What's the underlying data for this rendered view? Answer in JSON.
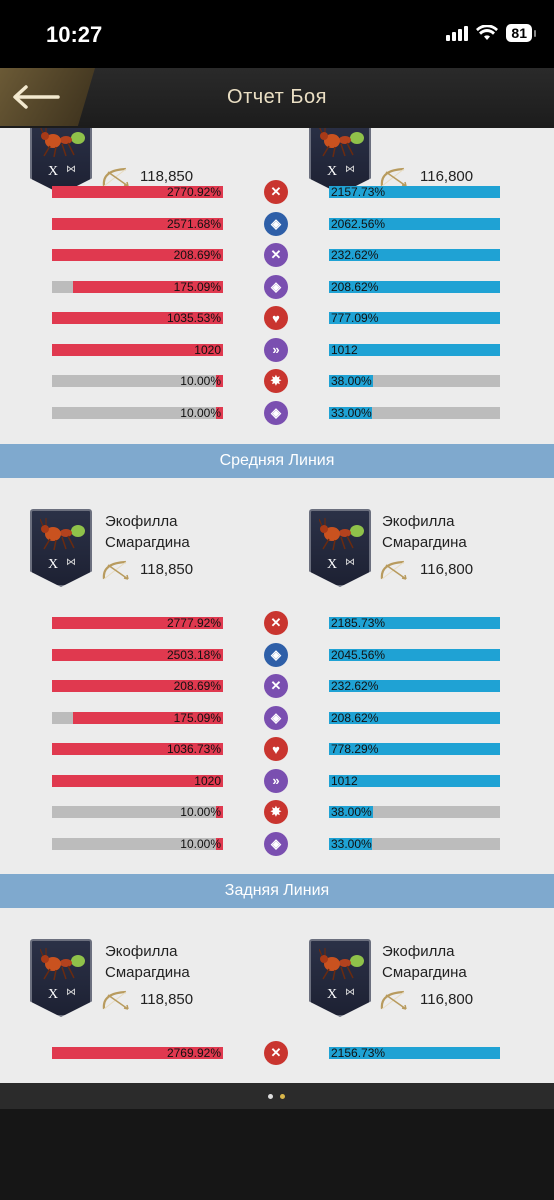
{
  "status_bar": {
    "time": "10:27",
    "battery": "81"
  },
  "header": {
    "title": "Отчет Боя"
  },
  "sections": [
    {
      "label": "",
      "left": {
        "name": "",
        "power": "118,850"
      },
      "right": {
        "name": "",
        "power": "116,800"
      },
      "rows": [
        {
          "stat": "attack",
          "left": "2770.92%",
          "left_fill": 1.0,
          "right": "2157.73%",
          "right_fill": 1.0
        },
        {
          "stat": "defense",
          "left": "2571.68%",
          "left_fill": 1.0,
          "right": "2062.56%",
          "right_fill": 1.0
        },
        {
          "stat": "attack-purple",
          "left": "208.69%",
          "left_fill": 1.0,
          "right": "232.62%",
          "right_fill": 1.0
        },
        {
          "stat": "defense-purple",
          "left": "175.09%",
          "left_fill": 0.88,
          "right": "208.62%",
          "right_fill": 1.0
        },
        {
          "stat": "health",
          "left": "1035.53%",
          "left_fill": 1.0,
          "right": "777.09%",
          "right_fill": 1.0
        },
        {
          "stat": "speed",
          "left": "1020",
          "left_fill": 1.0,
          "right": "1012",
          "right_fill": 1.0
        },
        {
          "stat": "crit",
          "left": "10.00%",
          "left_fill": 0.04,
          "right": "38.00%",
          "right_fill": 0.26
        },
        {
          "stat": "crit-defense",
          "left": "10.00%",
          "left_fill": 0.04,
          "right": "33.00%",
          "right_fill": 0.25
        }
      ]
    },
    {
      "label": "Средняя Линия",
      "left": {
        "name_line1": "Экофилла",
        "name_line2": "Смарагдина",
        "power": "118,850"
      },
      "right": {
        "name_line1": "Экофилла",
        "name_line2": "Смарагдина",
        "power": "116,800"
      },
      "rows": [
        {
          "stat": "attack",
          "left": "2777.92%",
          "left_fill": 1.0,
          "right": "2185.73%",
          "right_fill": 1.0
        },
        {
          "stat": "defense",
          "left": "2503.18%",
          "left_fill": 1.0,
          "right": "2045.56%",
          "right_fill": 1.0
        },
        {
          "stat": "attack-purple",
          "left": "208.69%",
          "left_fill": 1.0,
          "right": "232.62%",
          "right_fill": 1.0
        },
        {
          "stat": "defense-purple",
          "left": "175.09%",
          "left_fill": 0.88,
          "right": "208.62%",
          "right_fill": 1.0
        },
        {
          "stat": "health",
          "left": "1036.73%",
          "left_fill": 1.0,
          "right": "778.29%",
          "right_fill": 1.0
        },
        {
          "stat": "speed",
          "left": "1020",
          "left_fill": 1.0,
          "right": "1012",
          "right_fill": 1.0
        },
        {
          "stat": "crit",
          "left": "10.00%",
          "left_fill": 0.04,
          "right": "38.00%",
          "right_fill": 0.26
        },
        {
          "stat": "crit-defense",
          "left": "10.00%",
          "left_fill": 0.04,
          "right": "33.00%",
          "right_fill": 0.25
        }
      ]
    },
    {
      "label": "Задняя Линия",
      "left": {
        "name_line1": "Экофилла",
        "name_line2": "Смарагдина",
        "power": "118,850"
      },
      "right": {
        "name_line1": "Экофилла",
        "name_line2": "Смарагдина",
        "power": "116,800"
      },
      "rows": [
        {
          "stat": "attack",
          "left": "2769.92%",
          "left_fill": 1.0,
          "right": "2156.73%",
          "right_fill": 1.0
        }
      ]
    }
  ],
  "rank": "X",
  "colors": {
    "red": "#e0394f",
    "blue": "#1fa2d4",
    "gray": "#bcbcbc",
    "band": "#7fa9ce",
    "icon_red": "#c9352f",
    "icon_blue": "#2e5fa8",
    "icon_purple": "#7a4fb0"
  },
  "icons": {
    "attack": "swords-icon",
    "defense": "shield-icon",
    "health": "heart-icon",
    "speed": "speed-icon",
    "crit": "crit-icon",
    "crit-defense": "crit-shield-icon"
  }
}
